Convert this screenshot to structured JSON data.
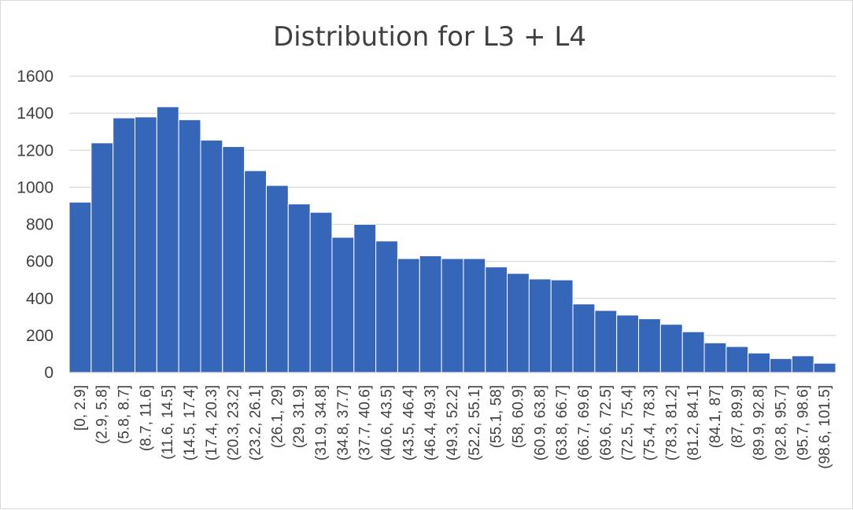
{
  "chart_data": {
    "type": "bar",
    "title": "Distribution for L3 + L4",
    "xlabel": "",
    "ylabel": "",
    "ylim": [
      0,
      1600
    ],
    "yticks": [
      0,
      200,
      400,
      600,
      800,
      1000,
      1200,
      1400,
      1600
    ],
    "grid": true,
    "legend": "none",
    "bar_color": "#3566b8",
    "categories": [
      "[0, 2.9]",
      "(2.9, 5.8]",
      "(5.8, 8.7]",
      "(8.7, 11.6]",
      "(11.6, 14.5]",
      "(14.5, 17.4]",
      "(17.4, 20.3]",
      "(20.3, 23.2]",
      "(23.2, 26.1]",
      "(26.1, 29]",
      "(29, 31.9]",
      "(31.9, 34.8]",
      "(34.8, 37.7]",
      "(37.7, 40.6]",
      "(40.6, 43.5]",
      "(43.5, 46.4]",
      "(46.4, 49.3]",
      "(49.3, 52.2]",
      "(52.2, 55.1]",
      "(55.1, 58]",
      "(58, 60.9]",
      "(60.9, 63.8]",
      "(63.8, 66.7]",
      "(66.7, 69.6]",
      "(69.6, 72.5]",
      "(72.5, 75.4]",
      "(75.4, 78.3]",
      "(78.3, 81.2]",
      "(81.2, 84.1]",
      "(84.1, 87]",
      "(87, 89.9]",
      "(89.9, 92.8]",
      "(92.8, 95.7]",
      "(95.7, 98.6]",
      "(98.6, 101.5]"
    ],
    "values": [
      920,
      1240,
      1375,
      1380,
      1435,
      1365,
      1255,
      1220,
      1090,
      1010,
      910,
      865,
      730,
      800,
      710,
      615,
      630,
      615,
      615,
      570,
      535,
      505,
      500,
      370,
      335,
      310,
      290,
      260,
      220,
      160,
      140,
      105,
      75,
      90,
      50
    ]
  }
}
